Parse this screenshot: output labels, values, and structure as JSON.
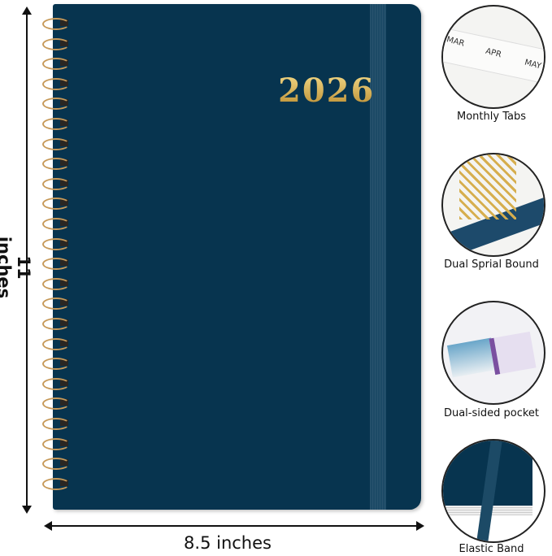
{
  "product": {
    "year": "2026",
    "cover_color": "#07344f",
    "foil_color": "#d9b45a"
  },
  "dimensions": {
    "height_label": "11 inches",
    "width_label": "8.5 inches"
  },
  "features": [
    {
      "label": "Monthly Tabs",
      "tabs": [
        "MAR",
        "APR",
        "MAY"
      ]
    },
    {
      "label": "Dual Sprial Bound"
    },
    {
      "label": "Dual-sided pocket"
    },
    {
      "label": "Elastic Band"
    }
  ]
}
